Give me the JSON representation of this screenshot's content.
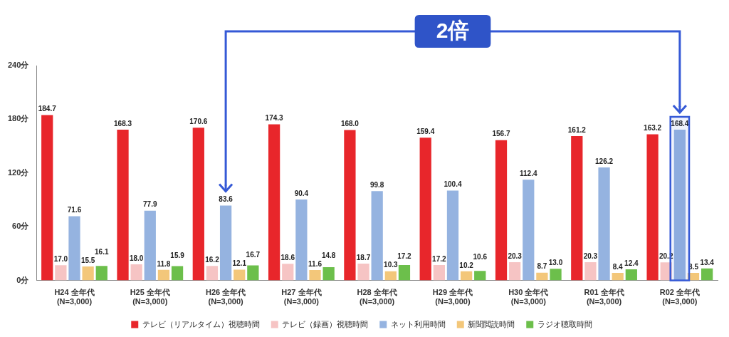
{
  "chart_data": {
    "type": "bar",
    "categories": [
      "H24 全年代\n(N=3,000)",
      "H25 全年代\n(N=3,000)",
      "H26 全年代\n(N=3,000)",
      "H27 全年代\n(N=3,000)",
      "H28 全年代\n(N=3,000)",
      "H29 全年代\n(N=3,000)",
      "H30 全年代\n(N=3,000)",
      "R01 全年代\n(N=3,000)",
      "R02 全年代\n(N=3,000)"
    ],
    "series": [
      {
        "name": "テレビ（リアルタイム）視聴時間",
        "color": "#e8262b",
        "values": [
          184.7,
          168.3,
          170.6,
          174.3,
          168.0,
          159.4,
          156.7,
          161.2,
          163.2
        ],
        "value_labels": [
          "184.7",
          "168.3",
          "170.6",
          "174.3",
          "168.0",
          "159.4",
          "156.7",
          "161.2",
          "163.2"
        ]
      },
      {
        "name": "テレビ（録画）視聴時間",
        "color": "#f6c4c4",
        "values": [
          17.0,
          18.0,
          16.2,
          18.6,
          18.7,
          17.2,
          20.3,
          20.3,
          20.2
        ],
        "value_labels": [
          "17.0",
          "18.0",
          "16.2",
          "18.6",
          "18.7",
          "17.2",
          "20.3",
          "20.3",
          "20.2"
        ]
      },
      {
        "name": "ネット利用時間",
        "color": "#95b3e0",
        "values": [
          71.6,
          77.9,
          83.6,
          90.4,
          99.8,
          100.4,
          112.4,
          126.2,
          168.4
        ],
        "value_labels": [
          "71.6",
          "77.9",
          "83.6",
          "90.4",
          "99.8",
          "100.4",
          "112.4",
          "126.2",
          "168.4"
        ]
      },
      {
        "name": "新聞閲読時間",
        "color": "#f3c77a",
        "values": [
          15.5,
          11.8,
          12.1,
          11.6,
          10.3,
          10.2,
          8.7,
          8.4,
          8.5
        ],
        "value_labels": [
          "15.5",
          "11.8",
          "12.1",
          "11.6",
          "10.3",
          "10.2",
          "8.7",
          "8.4",
          "8.5"
        ]
      },
      {
        "name": "ラジオ聴取時間",
        "color": "#6cbf4b",
        "values": [
          16.1,
          15.9,
          16.7,
          14.8,
          17.2,
          10.6,
          13.0,
          12.4,
          13.4
        ],
        "value_labels": [
          "16.1",
          "15.9",
          "16.7",
          "14.8",
          "17.2",
          "10.6",
          "13.0",
          "12.4",
          "13.4"
        ]
      }
    ],
    "ylim": [
      0,
      240
    ],
    "yticks": [
      {
        "value": 0,
        "label": "0分"
      },
      {
        "value": 60,
        "label": "60分"
      },
      {
        "value": 120,
        "label": "120分"
      },
      {
        "value": 180,
        "label": "180分"
      },
      {
        "value": 240,
        "label": "240分"
      }
    ],
    "grid": false,
    "legend": "bottom",
    "data_labels": true,
    "annotations": [
      {
        "text": "2倍",
        "from": "H26 全年代\n(N=3,000)",
        "to": "R02 全年代\n(N=3,000)",
        "series": "ネット利用時間"
      }
    ]
  }
}
